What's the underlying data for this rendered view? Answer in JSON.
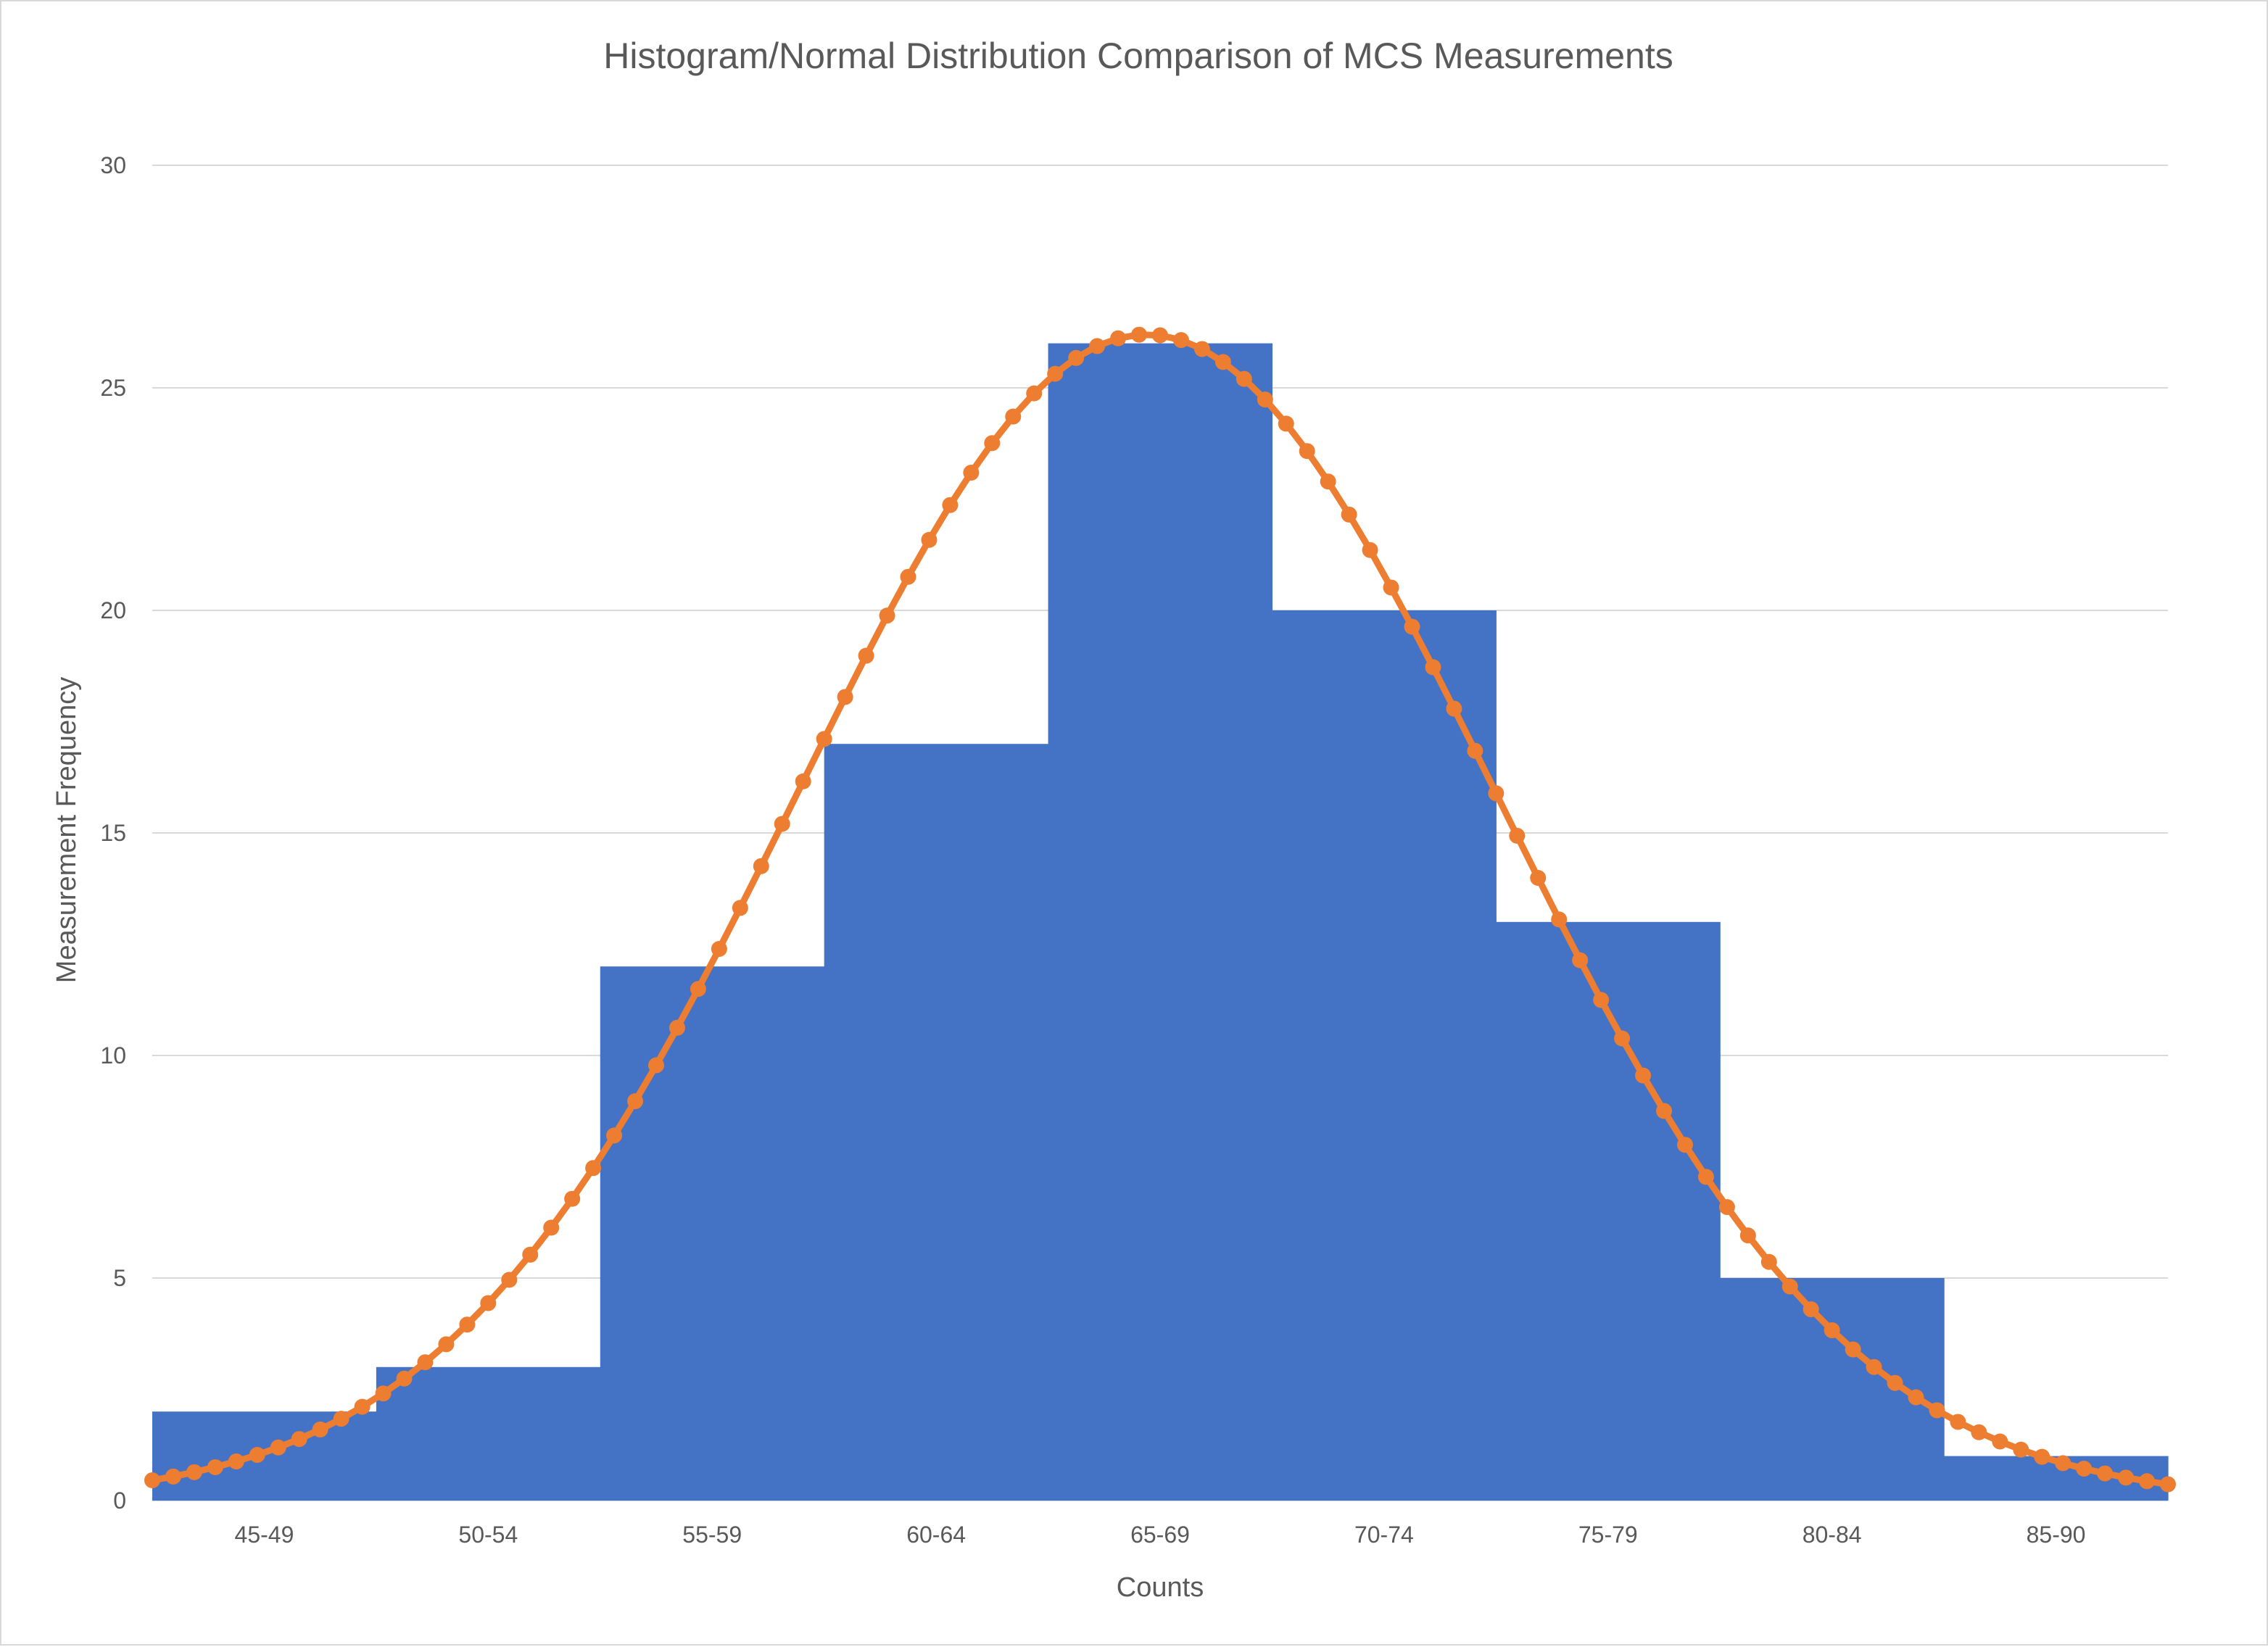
{
  "chart_data": {
    "type": "bar",
    "title": "Histogram/Normal Distribution Comparison of MCS Measurements",
    "xlabel": "Counts",
    "ylabel": "Measurement Frequency",
    "ylim": [
      0,
      30
    ],
    "yticks": [
      0,
      5,
      10,
      15,
      20,
      25,
      30
    ],
    "grid": true,
    "legend": "none",
    "categories": [
      "45-49",
      "50-54",
      "55-59",
      "60-64",
      "65-69",
      "70-74",
      "75-79",
      "80-84",
      "85-90"
    ],
    "series": [
      {
        "type": "bar",
        "color": "#4472C4",
        "values": [
          2,
          3,
          12,
          17,
          26,
          20,
          13,
          5,
          1
        ]
      },
      {
        "type": "line",
        "color": "#ED7D31",
        "marker": "circle",
        "x": [
          45,
          90
        ],
        "curve_type": "normal",
        "mean": 67.2,
        "sd": 7.8,
        "peak": 26.2,
        "point_count": 97
      }
    ]
  }
}
